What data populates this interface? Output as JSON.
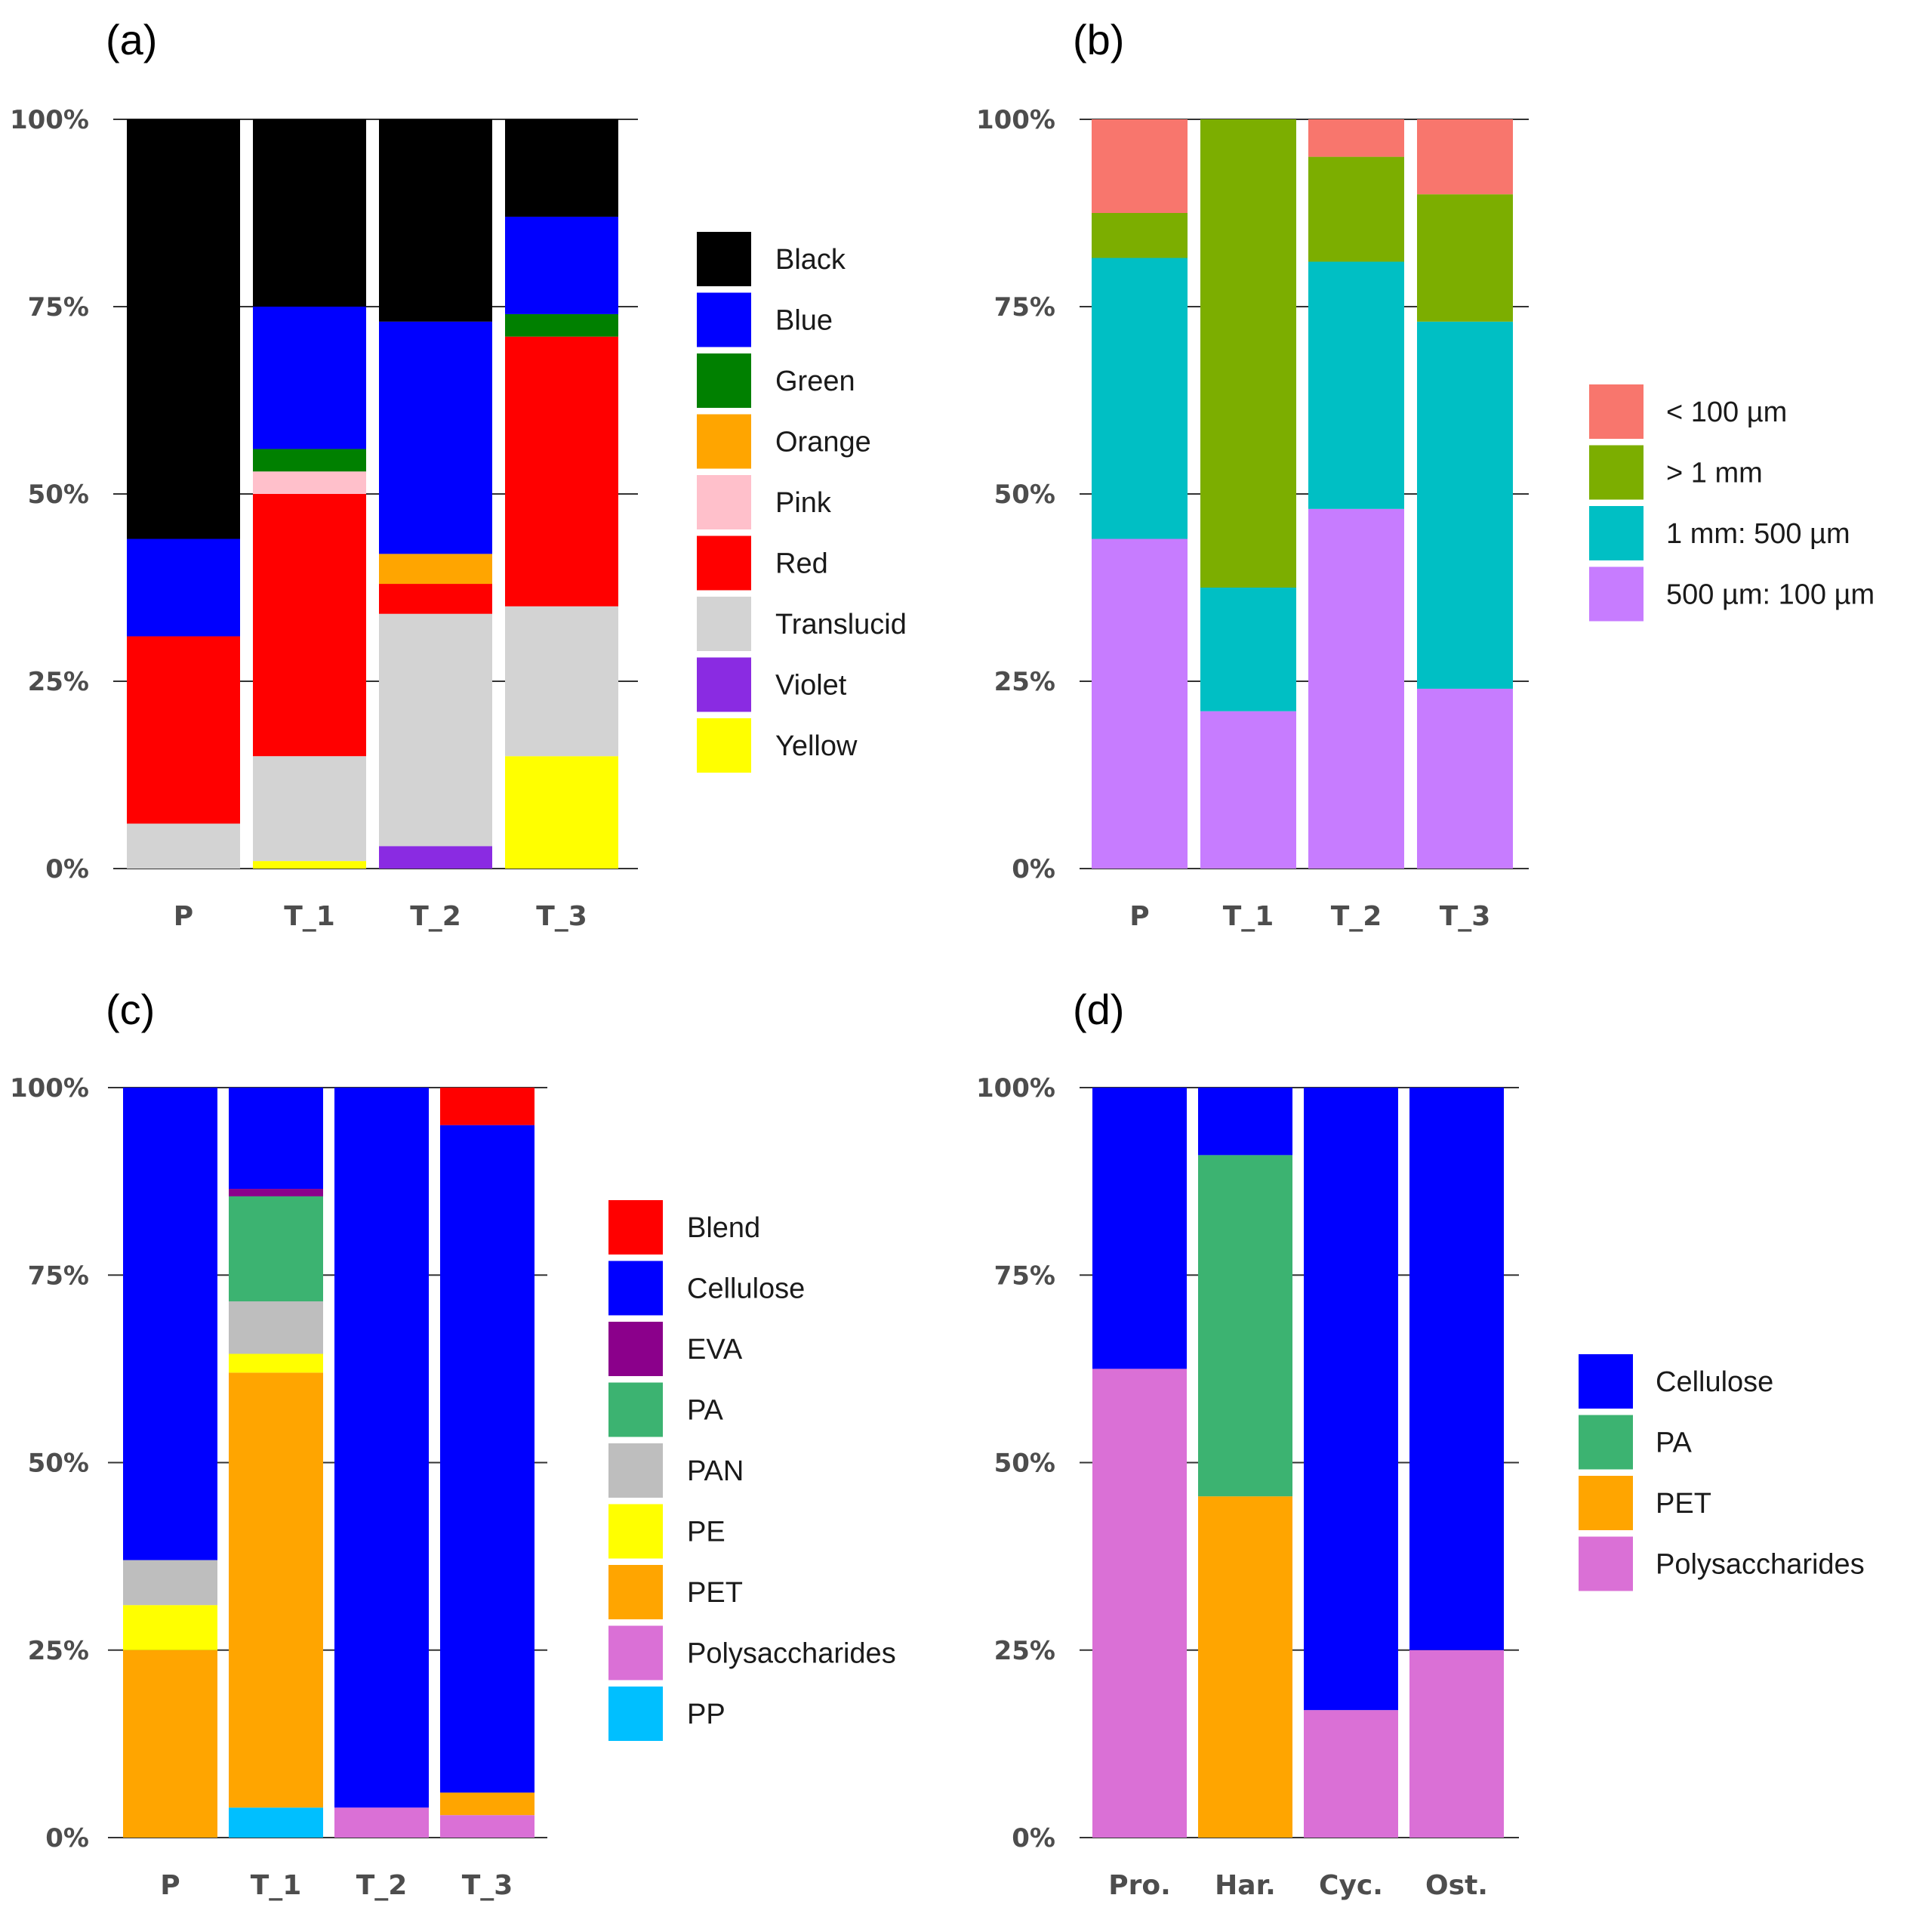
{
  "chart_data": [
    {
      "panel": "(a)",
      "type": "bar",
      "stacked": true,
      "categories": [
        "P",
        "T_1",
        "T_2",
        "T_3"
      ],
      "yticks": [
        "0%",
        "25%",
        "50%",
        "75%",
        "100%"
      ],
      "ylim": [
        0,
        100
      ],
      "legend_position": "right",
      "series": [
        {
          "name": "Yellow",
          "color": "#FFFF00",
          "values": [
            0,
            1,
            0,
            15
          ]
        },
        {
          "name": "Violet",
          "color": "#8A2BE2",
          "values": [
            0,
            0,
            3,
            0
          ]
        },
        {
          "name": "Translucid",
          "color": "#D3D3D3",
          "values": [
            6,
            14,
            31,
            20
          ]
        },
        {
          "name": "Red",
          "color": "#FF0000",
          "values": [
            25,
            35,
            4,
            36
          ]
        },
        {
          "name": "Pink",
          "color": "#FFC0CB",
          "values": [
            0,
            3,
            0,
            0
          ]
        },
        {
          "name": "Orange",
          "color": "#FFA500",
          "values": [
            0,
            0,
            4,
            0
          ]
        },
        {
          "name": "Green",
          "color": "#008000",
          "values": [
            0,
            3,
            0,
            3
          ]
        },
        {
          "name": "Blue",
          "color": "#0000FF",
          "values": [
            13,
            19,
            31,
            13
          ]
        },
        {
          "name": "Black",
          "color": "#000000",
          "values": [
            56,
            25,
            27,
            13
          ]
        }
      ],
      "legend_order": [
        "Black",
        "Blue",
        "Green",
        "Orange",
        "Pink",
        "Red",
        "Translucid",
        "Violet",
        "Yellow"
      ]
    },
    {
      "panel": "(b)",
      "type": "bar",
      "stacked": true,
      "categories": [
        "P",
        "T_1",
        "T_2",
        "T_3"
      ],
      "yticks": [
        "0%",
        "25%",
        "50%",
        "75%",
        "100%"
      ],
      "ylim": [
        0,
        100
      ],
      "legend_position": "right",
      "series": [
        {
          "name": "500 µm: 100 µm",
          "color": "#C77CFF",
          "values": [
            44,
            21,
            48,
            24
          ]
        },
        {
          "name": "1 mm: 500 µm",
          "color": "#00BFC4",
          "values": [
            37.5,
            16.5,
            33,
            49
          ]
        },
        {
          "name": "> 1 mm",
          "color": "#7CAE00",
          "values": [
            6,
            62.5,
            14,
            17
          ]
        },
        {
          "name": "< 100 µm",
          "color": "#F8766D",
          "values": [
            12.5,
            0,
            5,
            10
          ]
        }
      ],
      "legend_order": [
        "< 100 µm",
        "> 1 mm",
        "1 mm: 500 µm",
        "500 µm: 100 µm"
      ]
    },
    {
      "panel": "(c)",
      "type": "bar",
      "stacked": true,
      "categories": [
        "P",
        "T_1",
        "T_2",
        "T_3"
      ],
      "yticks": [
        "0%",
        "25%",
        "50%",
        "75%",
        "100%"
      ],
      "ylim": [
        0,
        100
      ],
      "legend_position": "right",
      "series": [
        {
          "name": "PP",
          "color": "#00BFFF",
          "values": [
            0,
            4,
            0,
            0
          ]
        },
        {
          "name": "Polysaccharides",
          "color": "#DA70D6",
          "values": [
            0,
            0,
            4,
            3
          ]
        },
        {
          "name": "PET",
          "color": "#FFA500",
          "values": [
            25,
            58,
            0,
            3
          ]
        },
        {
          "name": "PE",
          "color": "#FFFF00",
          "values": [
            6,
            2.5,
            0,
            0
          ]
        },
        {
          "name": "PAN",
          "color": "#BEBEBE",
          "values": [
            6,
            7,
            0,
            0
          ]
        },
        {
          "name": "PA",
          "color": "#3CB371",
          "values": [
            0,
            14,
            0,
            0
          ]
        },
        {
          "name": "EVA",
          "color": "#8B008B",
          "values": [
            0,
            1,
            0,
            0
          ]
        },
        {
          "name": "Cellulose",
          "color": "#0000FF",
          "values": [
            63,
            13.5,
            96,
            89
          ]
        },
        {
          "name": "Blend",
          "color": "#FF0000",
          "values": [
            0,
            0,
            0,
            5
          ]
        }
      ],
      "legend_order": [
        "Blend",
        "Cellulose",
        "EVA",
        "PA",
        "PAN",
        "PE",
        "PET",
        "Polysaccharides",
        "PP"
      ]
    },
    {
      "panel": "(d)",
      "type": "bar",
      "stacked": true,
      "categories": [
        "Pro.",
        "Har.",
        "Cyc.",
        "Ost."
      ],
      "yticks": [
        "0%",
        "25%",
        "50%",
        "75%",
        "100%"
      ],
      "ylim": [
        0,
        100
      ],
      "legend_position": "right",
      "series": [
        {
          "name": "Polysaccharides",
          "color": "#DA70D6",
          "values": [
            62.5,
            0,
            17,
            25
          ]
        },
        {
          "name": "PET",
          "color": "#FFA500",
          "values": [
            0,
            45.5,
            0,
            0
          ]
        },
        {
          "name": "PA",
          "color": "#3CB371",
          "values": [
            0,
            45.5,
            0,
            0
          ]
        },
        {
          "name": "Cellulose",
          "color": "#0000FF",
          "values": [
            37.5,
            9,
            83,
            75
          ]
        }
      ],
      "legend_order": [
        "Cellulose",
        "PA",
        "PET",
        "Polysaccharides"
      ]
    }
  ]
}
